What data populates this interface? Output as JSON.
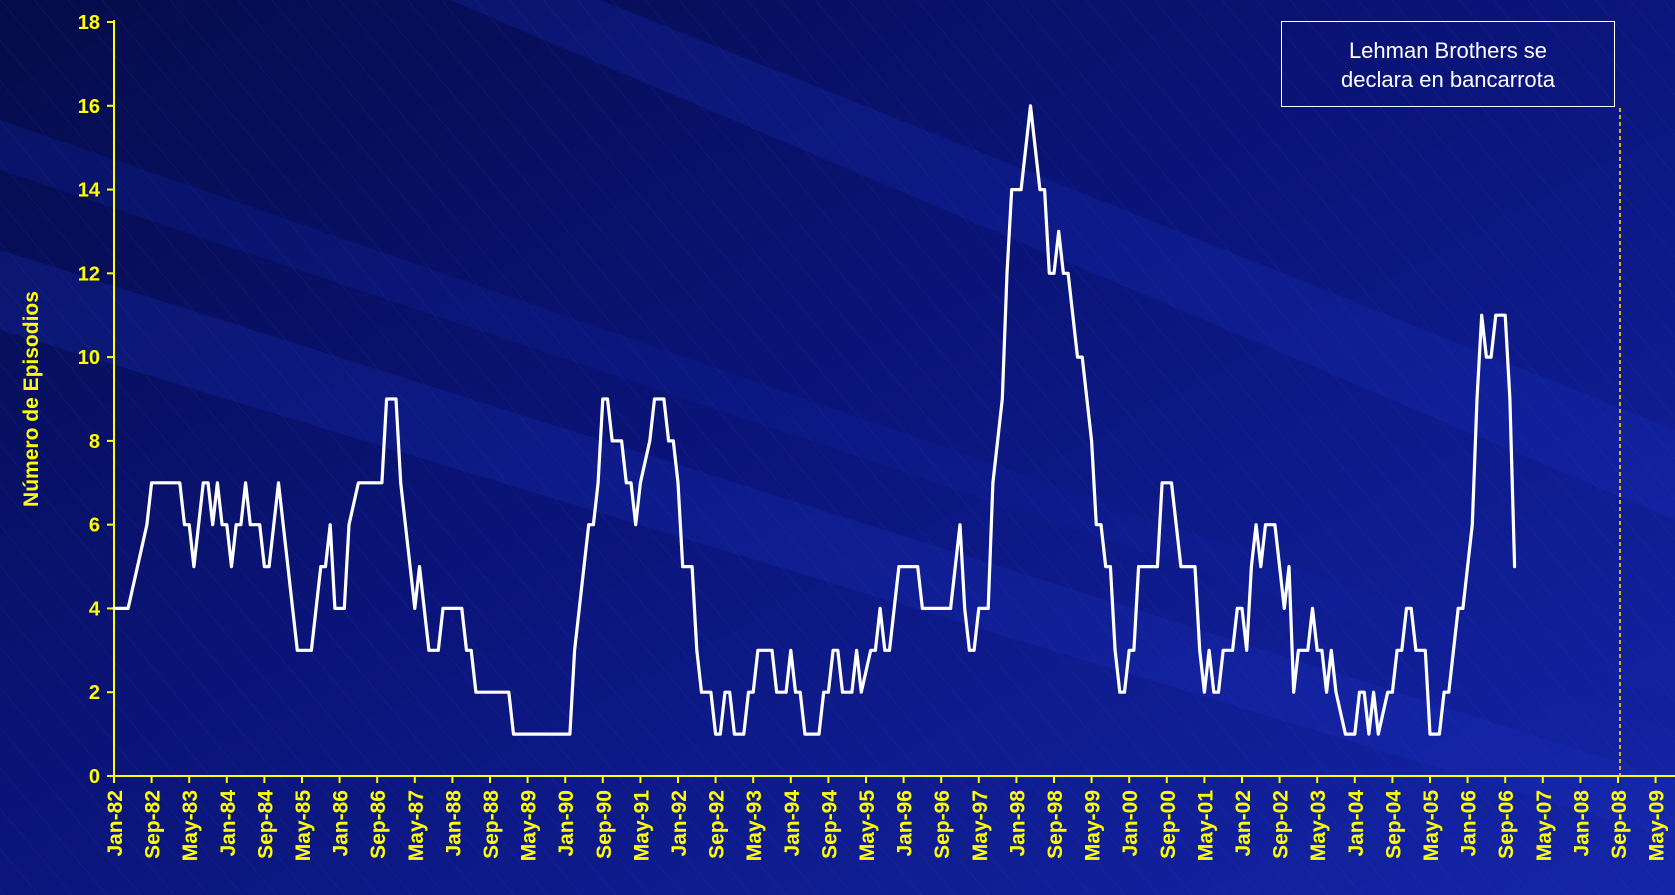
{
  "chart_data": {
    "type": "line",
    "title": "",
    "xlabel": "",
    "ylabel": "Número de Episodios",
    "ylim": [
      0,
      18
    ],
    "yticks": [
      0,
      2,
      4,
      6,
      8,
      10,
      12,
      14,
      16,
      18
    ],
    "x_tick_labels": [
      "Jan-82",
      "Sep-82",
      "May-83",
      "Jan-84",
      "Sep-84",
      "May-85",
      "Jan-86",
      "Sep-86",
      "May-87",
      "Jan-88",
      "Sep-88",
      "May-89",
      "Jan-90",
      "Sep-90",
      "May-91",
      "Jan-92",
      "Sep-92",
      "May-93",
      "Jan-94",
      "Sep-94",
      "May-95",
      "Jan-96",
      "Sep-96",
      "May-97",
      "Jan-98",
      "Sep-98",
      "May-99",
      "Jan-00",
      "Sep-00",
      "May-01",
      "Jan-02",
      "Sep-02",
      "May-03",
      "Jan-04",
      "Sep-04",
      "May-05",
      "Jan-06",
      "Sep-06",
      "May-07",
      "Jan-08",
      "Sep-08",
      "May-09"
    ],
    "x_range": [
      "Jan-82",
      "Jul-09"
    ],
    "grid": false,
    "legend": "none",
    "annotation": {
      "lines": [
        "Lehman Brothers se",
        "declara en bancarrota"
      ],
      "x": "Sep-08"
    },
    "series": [
      {
        "values": [
          [
            "Jan-82",
            4
          ],
          [
            "Apr-82",
            4
          ],
          [
            "Jun-82",
            5
          ],
          [
            "Aug-82",
            6
          ],
          [
            "Sep-82",
            7
          ],
          [
            "Nov-82",
            7
          ],
          [
            "Jan-83",
            7
          ],
          [
            "Mar-83",
            7
          ],
          [
            "Apr-83",
            6
          ],
          [
            "May-83",
            6
          ],
          [
            "Jun-83",
            5
          ],
          [
            "Jul-83",
            6
          ],
          [
            "Aug-83",
            7
          ],
          [
            "Sep-83",
            7
          ],
          [
            "Oct-83",
            6
          ],
          [
            "Nov-83",
            7
          ],
          [
            "Dec-83",
            6
          ],
          [
            "Jan-84",
            6
          ],
          [
            "Feb-84",
            5
          ],
          [
            "Mar-84",
            6
          ],
          [
            "Apr-84",
            6
          ],
          [
            "May-84",
            7
          ],
          [
            "Jun-84",
            6
          ],
          [
            "Aug-84",
            6
          ],
          [
            "Sep-84",
            5
          ],
          [
            "Oct-84",
            5
          ],
          [
            "Nov-84",
            6
          ],
          [
            "Dec-84",
            7
          ],
          [
            "Jan-85",
            6
          ],
          [
            "Mar-85",
            4
          ],
          [
            "Apr-85",
            3
          ],
          [
            "Jul-85",
            3
          ],
          [
            "Aug-85",
            4
          ],
          [
            "Sep-85",
            5
          ],
          [
            "Oct-85",
            5
          ],
          [
            "Nov-85",
            6
          ],
          [
            "Dec-85",
            4
          ],
          [
            "Feb-86",
            4
          ],
          [
            "Mar-86",
            6
          ],
          [
            "May-86",
            7
          ],
          [
            "Oct-86",
            7
          ],
          [
            "Nov-86",
            9
          ],
          [
            "Jan-87",
            9
          ],
          [
            "Feb-87",
            7
          ],
          [
            "Apr-87",
            5
          ],
          [
            "May-87",
            4
          ],
          [
            "Jun-87",
            5
          ],
          [
            "Jul-87",
            4
          ],
          [
            "Aug-87",
            3
          ],
          [
            "Oct-87",
            3
          ],
          [
            "Nov-87",
            4
          ],
          [
            "Mar-88",
            4
          ],
          [
            "Apr-88",
            3
          ],
          [
            "May-88",
            3
          ],
          [
            "Jun-88",
            2
          ],
          [
            "Jan-89",
            2
          ],
          [
            "Feb-89",
            1
          ],
          [
            "Feb-90",
            1
          ],
          [
            "Mar-90",
            3
          ],
          [
            "Apr-90",
            4
          ],
          [
            "Jun-90",
            6
          ],
          [
            "Jul-90",
            6
          ],
          [
            "Aug-90",
            7
          ],
          [
            "Sep-90",
            9
          ],
          [
            "Oct-90",
            9
          ],
          [
            "Nov-90",
            8
          ],
          [
            "Jan-91",
            8
          ],
          [
            "Feb-91",
            7
          ],
          [
            "Mar-91",
            7
          ],
          [
            "Apr-91",
            6
          ],
          [
            "May-91",
            7
          ],
          [
            "Jul-91",
            8
          ],
          [
            "Aug-91",
            9
          ],
          [
            "Oct-91",
            9
          ],
          [
            "Nov-91",
            8
          ],
          [
            "Dec-91",
            8
          ],
          [
            "Jan-92",
            7
          ],
          [
            "Feb-92",
            5
          ],
          [
            "Apr-92",
            5
          ],
          [
            "May-92",
            3
          ],
          [
            "Jun-92",
            2
          ],
          [
            "Aug-92",
            2
          ],
          [
            "Sep-92",
            1
          ],
          [
            "Oct-92",
            1
          ],
          [
            "Nov-92",
            2
          ],
          [
            "Dec-92",
            2
          ],
          [
            "Jan-93",
            1
          ],
          [
            "Mar-93",
            1
          ],
          [
            "Apr-93",
            2
          ],
          [
            "May-93",
            2
          ],
          [
            "Jun-93",
            3
          ],
          [
            "Sep-93",
            3
          ],
          [
            "Oct-93",
            2
          ],
          [
            "Dec-93",
            2
          ],
          [
            "Jan-94",
            3
          ],
          [
            "Feb-94",
            2
          ],
          [
            "Mar-94",
            2
          ],
          [
            "Apr-94",
            1
          ],
          [
            "Jul-94",
            1
          ],
          [
            "Aug-94",
            2
          ],
          [
            "Sep-94",
            2
          ],
          [
            "Oct-94",
            3
          ],
          [
            "Nov-94",
            3
          ],
          [
            "Dec-94",
            2
          ],
          [
            "Feb-95",
            2
          ],
          [
            "Mar-95",
            3
          ],
          [
            "Apr-95",
            2
          ],
          [
            "Jun-95",
            3
          ],
          [
            "Jul-95",
            3
          ],
          [
            "Aug-95",
            4
          ],
          [
            "Sep-95",
            3
          ],
          [
            "Oct-95",
            3
          ],
          [
            "Nov-95",
            4
          ],
          [
            "Dec-95",
            5
          ],
          [
            "Apr-96",
            5
          ],
          [
            "May-96",
            4
          ],
          [
            "Nov-96",
            4
          ],
          [
            "Dec-96",
            5
          ],
          [
            "Jan-97",
            6
          ],
          [
            "Feb-97",
            4
          ],
          [
            "Mar-97",
            3
          ],
          [
            "Apr-97",
            3
          ],
          [
            "May-97",
            4
          ],
          [
            "Jul-97",
            4
          ],
          [
            "Aug-97",
            7
          ],
          [
            "Sep-97",
            8
          ],
          [
            "Oct-97",
            9
          ],
          [
            "Nov-97",
            12
          ],
          [
            "Dec-97",
            14
          ],
          [
            "Feb-98",
            14
          ],
          [
            "Mar-98",
            15
          ],
          [
            "Apr-98",
            16
          ],
          [
            "May-98",
            15
          ],
          [
            "Jun-98",
            14
          ],
          [
            "Jul-98",
            14
          ],
          [
            "Aug-98",
            12
          ],
          [
            "Sep-98",
            12
          ],
          [
            "Oct-98",
            13
          ],
          [
            "Nov-98",
            12
          ],
          [
            "Dec-98",
            12
          ],
          [
            "Jan-99",
            11
          ],
          [
            "Feb-99",
            10
          ],
          [
            "Mar-99",
            10
          ],
          [
            "Apr-99",
            9
          ],
          [
            "May-99",
            8
          ],
          [
            "Jun-99",
            6
          ],
          [
            "Jul-99",
            6
          ],
          [
            "Aug-99",
            5
          ],
          [
            "Sep-99",
            5
          ],
          [
            "Oct-99",
            3
          ],
          [
            "Nov-99",
            2
          ],
          [
            "Dec-99",
            2
          ],
          [
            "Jan-00",
            3
          ],
          [
            "Feb-00",
            3
          ],
          [
            "Mar-00",
            5
          ],
          [
            "Jul-00",
            5
          ],
          [
            "Aug-00",
            7
          ],
          [
            "Oct-00",
            7
          ],
          [
            "Nov-00",
            6
          ],
          [
            "Dec-00",
            5
          ],
          [
            "Mar-01",
            5
          ],
          [
            "Apr-01",
            3
          ],
          [
            "May-01",
            2
          ],
          [
            "Jun-01",
            3
          ],
          [
            "Jul-01",
            2
          ],
          [
            "Aug-01",
            2
          ],
          [
            "Sep-01",
            3
          ],
          [
            "Nov-01",
            3
          ],
          [
            "Dec-01",
            4
          ],
          [
            "Jan-02",
            4
          ],
          [
            "Feb-02",
            3
          ],
          [
            "Mar-02",
            5
          ],
          [
            "Apr-02",
            6
          ],
          [
            "May-02",
            5
          ],
          [
            "Jun-02",
            6
          ],
          [
            "Aug-02",
            6
          ],
          [
            "Sep-02",
            5
          ],
          [
            "Oct-02",
            4
          ],
          [
            "Nov-02",
            5
          ],
          [
            "Dec-02",
            2
          ],
          [
            "Jan-03",
            3
          ],
          [
            "Feb-03",
            3
          ],
          [
            "Mar-03",
            3
          ],
          [
            "Apr-03",
            4
          ],
          [
            "May-03",
            3
          ],
          [
            "Jun-03",
            3
          ],
          [
            "Jul-03",
            2
          ],
          [
            "Aug-03",
            3
          ],
          [
            "Sep-03",
            2
          ],
          [
            "Nov-03",
            1
          ],
          [
            "Jan-04",
            1
          ],
          [
            "Feb-04",
            2
          ],
          [
            "Mar-04",
            2
          ],
          [
            "Apr-04",
            1
          ],
          [
            "May-04",
            2
          ],
          [
            "Jun-04",
            1
          ],
          [
            "Aug-04",
            2
          ],
          [
            "Sep-04",
            2
          ],
          [
            "Oct-04",
            3
          ],
          [
            "Nov-04",
            3
          ],
          [
            "Dec-04",
            4
          ],
          [
            "Jan-05",
            4
          ],
          [
            "Feb-05",
            3
          ],
          [
            "Apr-05",
            3
          ],
          [
            "May-05",
            1
          ],
          [
            "Jul-05",
            1
          ],
          [
            "Aug-05",
            2
          ],
          [
            "Sep-05",
            2
          ],
          [
            "Oct-05",
            3
          ],
          [
            "Nov-05",
            4
          ],
          [
            "Dec-05",
            4
          ],
          [
            "Jan-06",
            5
          ],
          [
            "Feb-06",
            6
          ],
          [
            "Mar-06",
            9
          ],
          [
            "Apr-06",
            11
          ],
          [
            "May-06",
            10
          ],
          [
            "Jun-06",
            10
          ],
          [
            "Jul-06",
            11
          ],
          [
            "Sep-06",
            11
          ],
          [
            "Oct-06",
            9
          ],
          [
            "Nov-06",
            5
          ]
        ],
        "color": "#ffffff"
      }
    ]
  },
  "colors": {
    "background": "#0a1480",
    "axis": "#ffff00",
    "tick_label": "#ffff00",
    "line": "#ffffff",
    "annotation_line": "#ffd700"
  }
}
